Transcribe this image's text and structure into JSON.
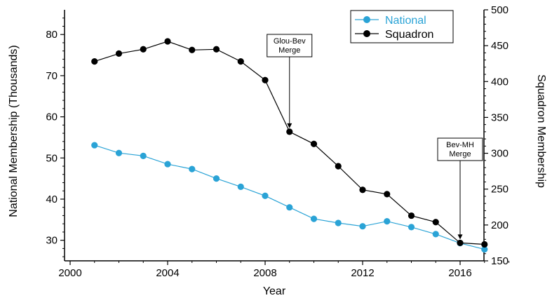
{
  "chart_data": {
    "type": "line",
    "xlabel": "Year",
    "ylabel_left": "National Membership (Thousands)",
    "ylabel_right": "Squadron Membership",
    "xlim": [
      2000,
      2018
    ],
    "ylim_left": [
      25,
      86
    ],
    "ylim_right": [
      150,
      500
    ],
    "x_ticks": [
      2000,
      2004,
      2008,
      2012,
      2016
    ],
    "y_ticks_left": [
      30,
      40,
      50,
      60,
      70,
      80
    ],
    "y_ticks_right": [
      150,
      200,
      250,
      300,
      350,
      400,
      450,
      500
    ],
    "legend_position": "top-right",
    "grid": false,
    "series": [
      {
        "name": "National",
        "axis": "left",
        "color": "#2aa3d6",
        "x": [
          2001,
          2002,
          2003,
          2004,
          2005,
          2006,
          2007,
          2008,
          2009,
          2010,
          2011,
          2012,
          2013,
          2014,
          2015,
          2016,
          2017
        ],
        "values": [
          53.1,
          51.2,
          50.5,
          48.5,
          47.3,
          45.0,
          43.0,
          40.8,
          38.0,
          35.2,
          34.2,
          33.4,
          34.6,
          33.2,
          31.5,
          29.3,
          27.8
        ]
      },
      {
        "name": "Squadron",
        "axis": "right",
        "color": "#000000",
        "x": [
          2001,
          2002,
          2003,
          2004,
          2005,
          2006,
          2007,
          2008,
          2009,
          2010,
          2011,
          2012,
          2013,
          2014,
          2015,
          2016,
          2017
        ],
        "values": [
          428,
          439,
          445,
          456,
          444,
          445,
          428,
          402,
          330,
          313,
          282,
          249,
          243,
          213,
          204,
          175,
          173
        ]
      }
    ],
    "annotations": [
      {
        "line1": "Glou-Bev",
        "line2": "Merge",
        "x": 2009
      },
      {
        "line1": "Bev-MH",
        "line2": "Merge",
        "x": 2016
      }
    ]
  }
}
